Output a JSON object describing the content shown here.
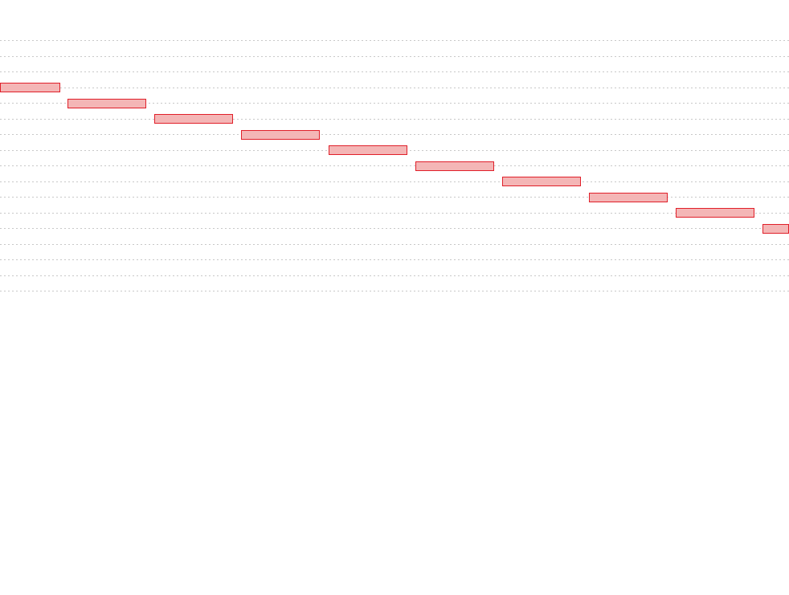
{
  "chart_data": {
    "type": "gantt",
    "title": "",
    "xlabel": "",
    "ylabel": "",
    "grid": true,
    "grid_style": "dotted",
    "row_count": 17,
    "time_span": [
      0,
      100
    ],
    "bar_color": "#f4b6b6",
    "bar_border_color": "#e0202a",
    "grid_color": "#c8c8c8",
    "tasks": [
      {
        "row": 3,
        "start": 0.0,
        "end": 7.6
      },
      {
        "row": 4,
        "start": 8.6,
        "end": 18.6
      },
      {
        "row": 5,
        "start": 19.6,
        "end": 29.6
      },
      {
        "row": 6,
        "start": 30.6,
        "end": 40.6
      },
      {
        "row": 7,
        "start": 41.6,
        "end": 51.6
      },
      {
        "row": 8,
        "start": 52.6,
        "end": 62.6
      },
      {
        "row": 9,
        "start": 63.6,
        "end": 73.6
      },
      {
        "row": 10,
        "start": 74.6,
        "end": 84.6
      },
      {
        "row": 11,
        "start": 85.6,
        "end": 95.6
      },
      {
        "row": 12,
        "start": 96.6,
        "end": 100.0
      }
    ]
  }
}
